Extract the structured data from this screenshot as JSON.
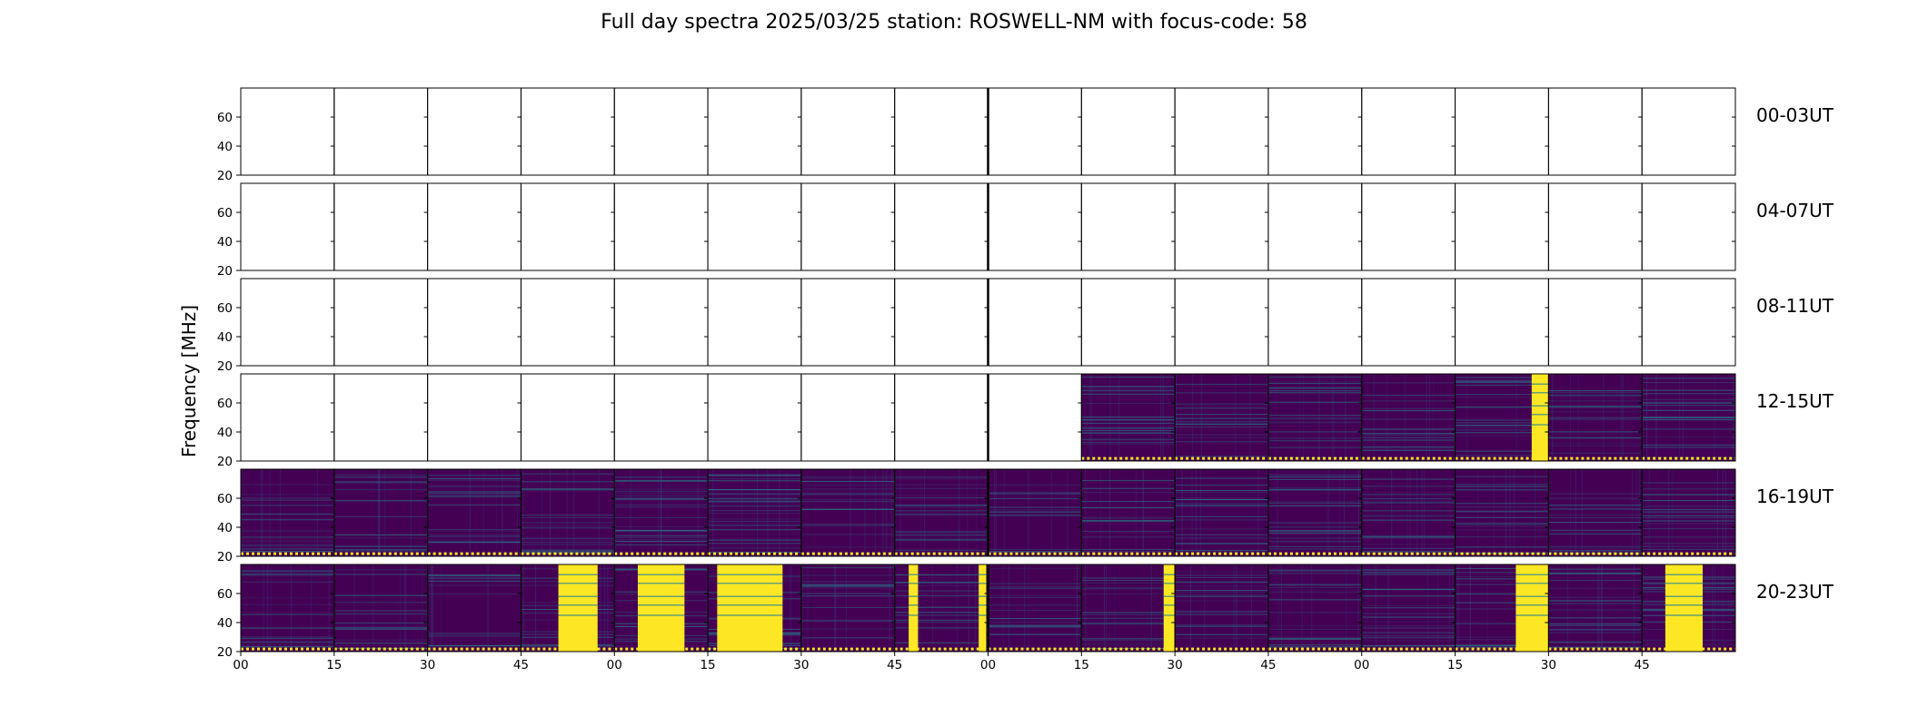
{
  "title": "Full day spectra 2025/03/25 station: ROSWELL-NM with focus-code: 58",
  "chart_data": {
    "type": "heatmap",
    "title": "Full day spectra 2025/03/25 station: ROSWELL-NM with focus-code: 58",
    "xlabel": "",
    "ylabel": "Frequency [MHz]",
    "y_range": [
      20,
      80
    ],
    "y_ticks": [
      "20",
      "40",
      "60"
    ],
    "x_tick_labels": [
      "00",
      "15",
      "30",
      "45",
      "00",
      "15",
      "30",
      "45",
      "00",
      "15",
      "30",
      "45",
      "00",
      "15",
      "30",
      "45"
    ],
    "colormap": "viridis",
    "colors": {
      "background": "#440154",
      "mid": "#26828e",
      "high": "#fde725",
      "empty": "#ffffff"
    },
    "columns_per_row": 16,
    "rows": [
      {
        "label": "00-03UT",
        "data_segments": []
      },
      {
        "label": "04-07UT",
        "data_segments": []
      },
      {
        "label": "08-11UT",
        "data_segments": []
      },
      {
        "label": "12-15UT",
        "data_segments": [
          9,
          10,
          11,
          12,
          13,
          14,
          15
        ],
        "saturated_bursts": [
          {
            "segment": 13,
            "start": 0.82,
            "end": 1.0
          }
        ]
      },
      {
        "label": "16-19UT",
        "data_segments": [
          0,
          1,
          2,
          3,
          4,
          5,
          6,
          7,
          8,
          9,
          10,
          11,
          12,
          13,
          14,
          15
        ]
      },
      {
        "label": "20-23UT",
        "data_segments": [
          0,
          1,
          2,
          3,
          4,
          5,
          6,
          7,
          8,
          9,
          10,
          11,
          12,
          13,
          14,
          15
        ],
        "saturated_bursts": [
          {
            "segment": 3,
            "start": 0.4,
            "end": 0.82
          },
          {
            "segment": 4,
            "start": 0.25,
            "end": 0.75
          },
          {
            "segment": 5,
            "start": 0.1,
            "end": 0.8
          },
          {
            "segment": 7,
            "start": 0.15,
            "end": 0.25
          },
          {
            "segment": 7,
            "start": 0.9,
            "end": 0.98
          },
          {
            "segment": 9,
            "start": 0.88,
            "end": 1.0
          },
          {
            "segment": 13,
            "start": 0.65,
            "end": 1.0
          },
          {
            "segment": 15,
            "start": 0.25,
            "end": 0.65
          }
        ]
      }
    ]
  }
}
